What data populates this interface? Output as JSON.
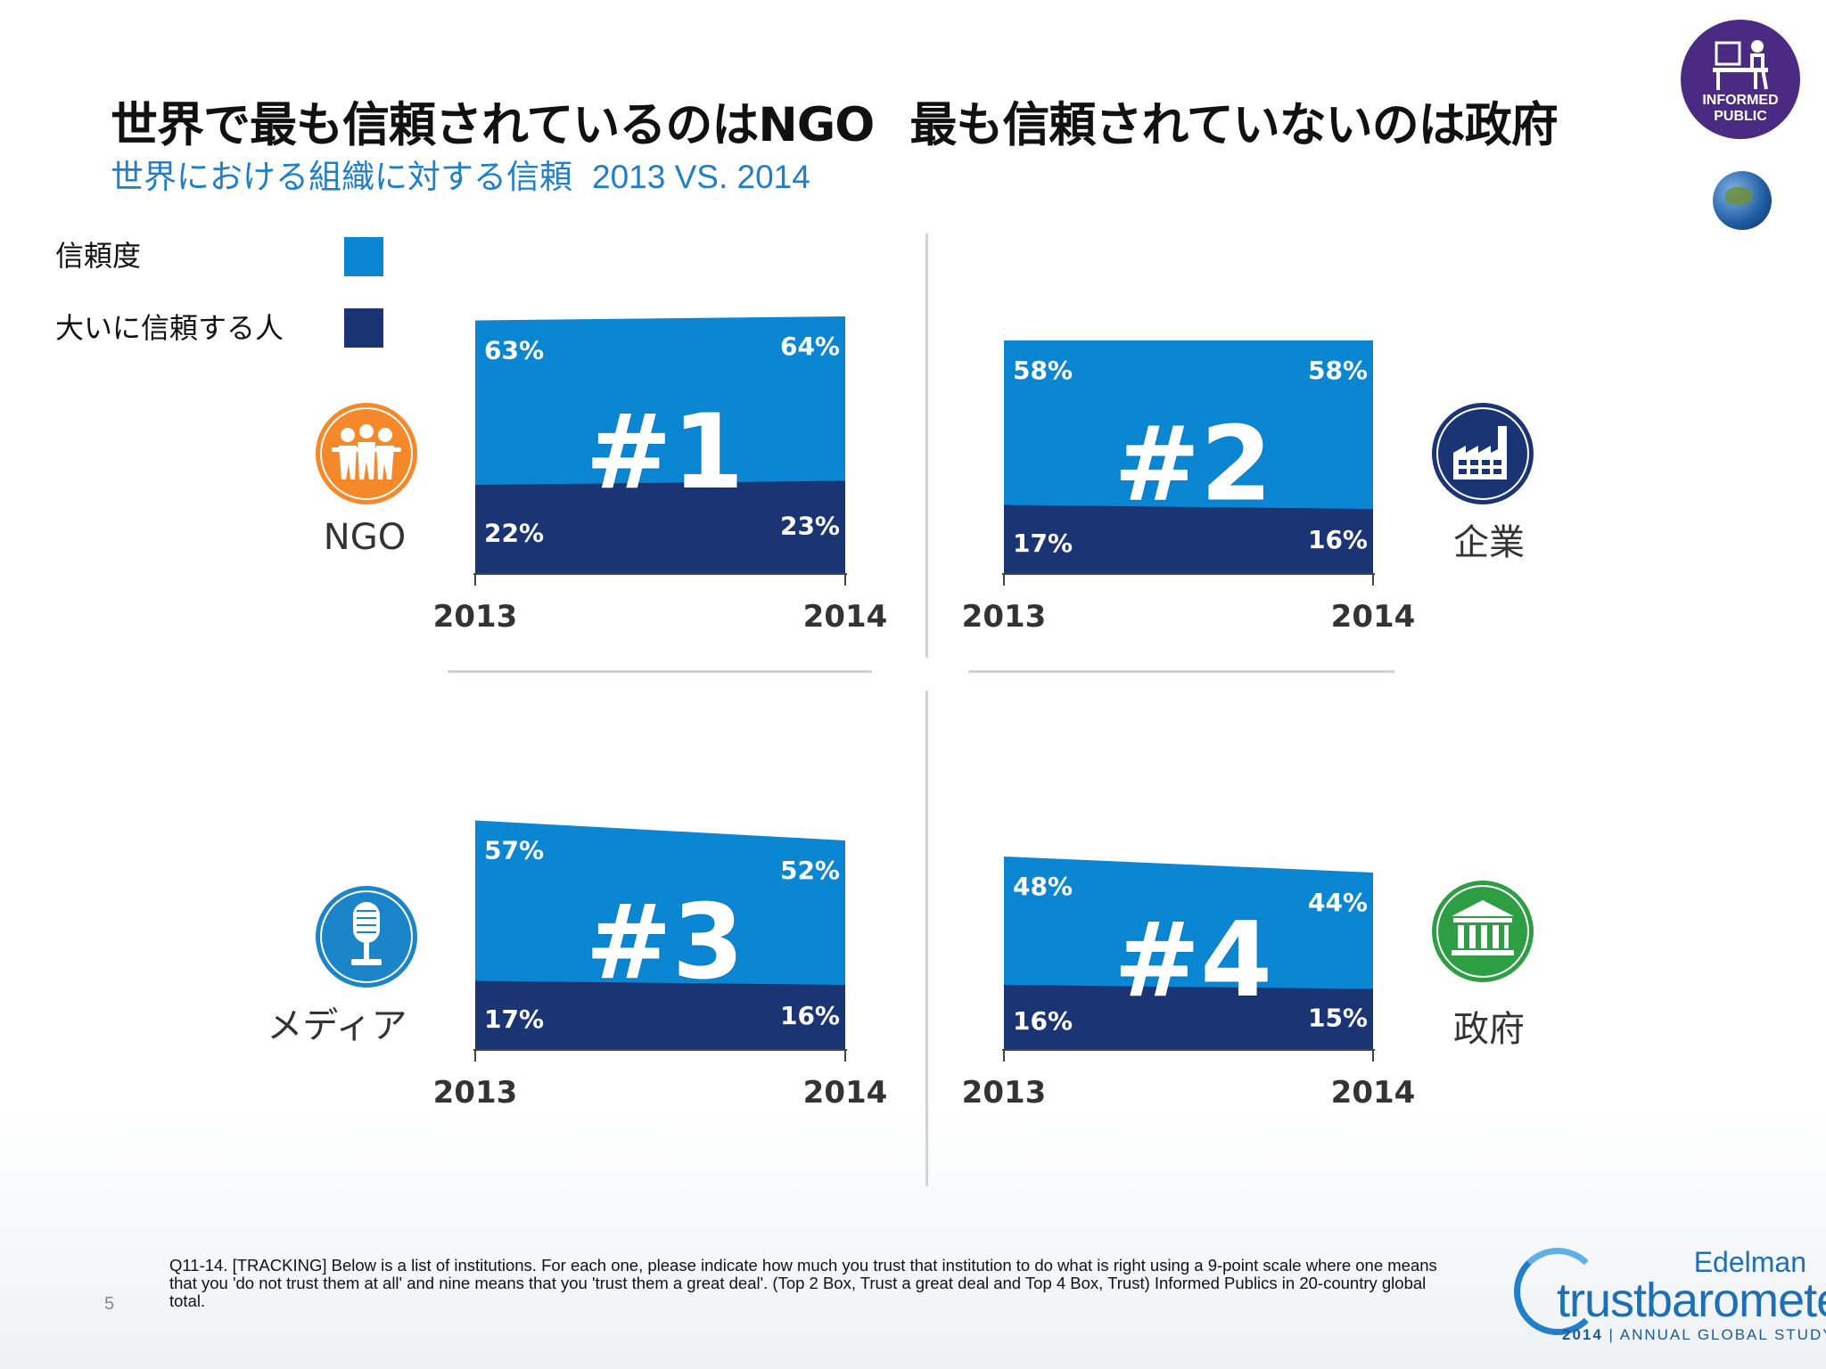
{
  "title": {
    "part1": "世界で最も信頼されているのはNGO",
    "part2": "最も信頼されていないのは政府"
  },
  "subtitle": {
    "text": "世界における組織に対する信頼",
    "years": "2013 VS. 2014"
  },
  "legend": [
    {
      "label": "信頼度",
      "color": "#0a86d2"
    },
    {
      "label": "大いに信頼する人",
      "color": "#1b3474"
    }
  ],
  "badge": {
    "line1": "INFORMED",
    "line2": "PUBLIC"
  },
  "colors": {
    "trust": "#0a86d2",
    "high_trust": "#1b3474"
  },
  "chart_data": [
    {
      "type": "area",
      "category": "NGO",
      "icon": "people-group-icon",
      "icon_color": "#f5892a",
      "rank": "#1",
      "x": [
        "2013",
        "2014"
      ],
      "series": [
        {
          "name": "信頼度",
          "values": [
            63,
            64
          ],
          "labels": [
            "63%",
            "64%"
          ]
        },
        {
          "name": "大いに信頼する人",
          "values": [
            22,
            23
          ],
          "labels": [
            "22%",
            "23%"
          ]
        }
      ]
    },
    {
      "type": "area",
      "category": "企業",
      "icon": "factory-icon",
      "icon_color": "#1b3474",
      "rank": "#2",
      "x": [
        "2013",
        "2014"
      ],
      "series": [
        {
          "name": "信頼度",
          "values": [
            58,
            58
          ],
          "labels": [
            "58%",
            "58%"
          ]
        },
        {
          "name": "大いに信頼する人",
          "values": [
            17,
            16
          ],
          "labels": [
            "17%",
            "16%"
          ]
        }
      ]
    },
    {
      "type": "area",
      "category": "メディア",
      "icon": "microphone-icon",
      "icon_color": "#1b85c9",
      "rank": "#3",
      "x": [
        "2013",
        "2014"
      ],
      "series": [
        {
          "name": "信頼度",
          "values": [
            57,
            52
          ],
          "labels": [
            "57%",
            "52%"
          ]
        },
        {
          "name": "大いに信頼する人",
          "values": [
            17,
            16
          ],
          "labels": [
            "17%",
            "16%"
          ]
        }
      ]
    },
    {
      "type": "area",
      "category": "政府",
      "icon": "government-building-icon",
      "icon_color": "#2e9e45",
      "rank": "#4",
      "x": [
        "2013",
        "2014"
      ],
      "series": [
        {
          "name": "信頼度",
          "values": [
            48,
            44
          ],
          "labels": [
            "48%",
            "44%"
          ]
        },
        {
          "name": "大いに信頼する人",
          "values": [
            16,
            15
          ],
          "labels": [
            "16%",
            "15%"
          ]
        }
      ]
    }
  ],
  "footnote": "Q11-14. [TRACKING] Below is a list of institutions. For each one, please indicate how much you trust that institution to do what is right using a 9-point scale where one means that you 'do not trust them at all' and nine means that you 'trust them a great deal'. (Top 2 Box, Trust a great deal and Top 4 Box, Trust) Informed Publics in 20-country global total.",
  "page_number": "5",
  "logo": {
    "brand": "Edelman",
    "name": "trustbarometer",
    "year": "2014",
    "tagline": "ANNUAL GLOBAL STUDY"
  }
}
